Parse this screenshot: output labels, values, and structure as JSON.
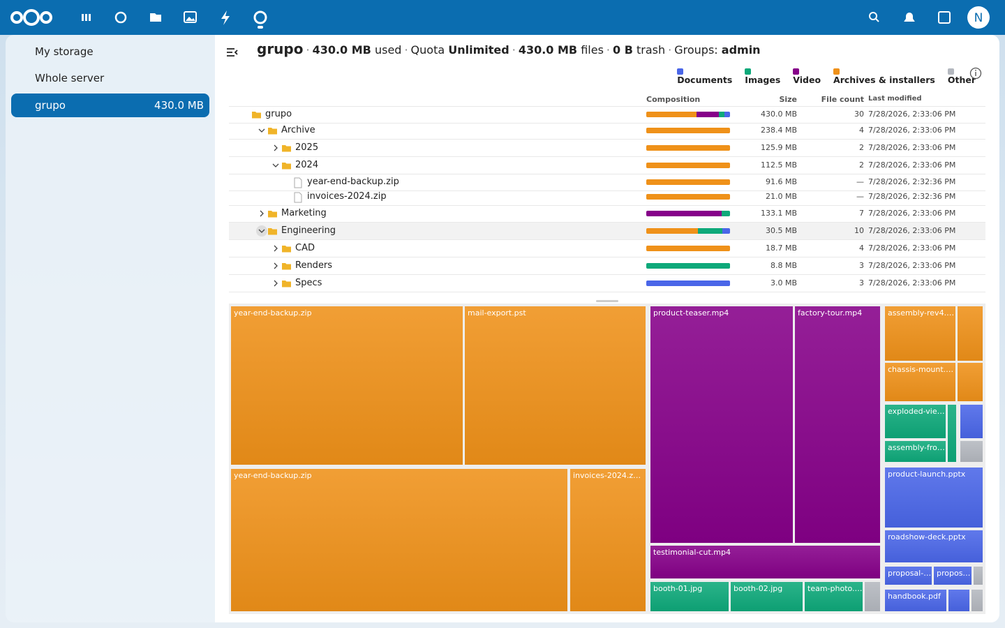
{
  "top_bar": {
    "avatar": "N"
  },
  "sidebar": {
    "items": [
      {
        "label": "My storage"
      },
      {
        "label": "Whole server"
      },
      {
        "label": "grupo",
        "size": "430.0 MB"
      }
    ]
  },
  "header": {
    "title": "grupo",
    "separator": "·",
    "used_value": "430.0 MB",
    "used_label": "used",
    "quota_label": "Quota",
    "quota_value": "Unlimited",
    "files_value": "430.0 MB",
    "files_label": "files",
    "trash_value": "0 B",
    "trash_label": "trash",
    "groups_label": "Groups:",
    "groups_value": "admin"
  },
  "legend": [
    {
      "name": "Documents",
      "color": "#4a66e8"
    },
    {
      "name": "Images",
      "color": "#0ea97a"
    },
    {
      "name": "Video",
      "color": "#860089"
    },
    {
      "name": "Archives & installers",
      "color": "#ef9119"
    },
    {
      "name": "Other",
      "color": "#b4b8bf"
    }
  ],
  "table": {
    "columns": [
      "Composition",
      "Size",
      "File count",
      "Last modified"
    ],
    "rows": [
      {
        "name": "grupo",
        "size": "430.0 MB",
        "count": 30,
        "modified": "7/28/2026, 2:33:06 PM",
        "composition": [
          7,
          6,
          27,
          60,
          0
        ]
      },
      {
        "name": "Archive",
        "size": "238.4 MB",
        "count": 4,
        "modified": "7/28/2026, 2:33:06 PM",
        "composition": [
          0,
          0,
          0,
          100,
          0
        ]
      },
      {
        "name": "2025",
        "size": "125.9 MB",
        "count": 2,
        "modified": "7/28/2026, 2:33:06 PM",
        "composition": [
          0,
          0,
          0,
          100,
          0
        ]
      },
      {
        "name": "2024",
        "size": "112.5 MB",
        "count": 2,
        "modified": "7/28/2026, 2:33:06 PM",
        "composition": [
          0,
          0,
          0,
          100,
          0
        ]
      },
      {
        "name": "year-end-backup.zip",
        "size": "91.6 MB",
        "count": "—",
        "modified": "7/28/2026, 2:32:36 PM",
        "composition": [
          0,
          0,
          0,
          100,
          0
        ]
      },
      {
        "name": "invoices-2024.zip",
        "size": "21.0 MB",
        "count": "—",
        "modified": "7/28/2026, 2:32:36 PM",
        "composition": [
          0,
          0,
          0,
          100,
          0
        ]
      },
      {
        "name": "Marketing",
        "size": "133.1 MB",
        "count": 7,
        "modified": "7/28/2026, 2:33:06 PM",
        "composition": [
          0,
          10,
          90,
          0,
          0
        ]
      },
      {
        "name": "Engineering",
        "size": "30.5 MB",
        "count": 10,
        "modified": "7/28/2026, 2:33:06 PM",
        "composition": [
          9,
          29,
          0,
          62,
          0
        ]
      },
      {
        "name": "CAD",
        "size": "18.7 MB",
        "count": 4,
        "modified": "7/28/2026, 2:33:06 PM",
        "composition": [
          0,
          0,
          0,
          100,
          0
        ]
      },
      {
        "name": "Renders",
        "size": "8.8 MB",
        "count": 3,
        "modified": "7/28/2026, 2:33:06 PM",
        "composition": [
          0,
          100,
          0,
          0,
          0
        ]
      },
      {
        "name": "Specs",
        "size": "3.0 MB",
        "count": 3,
        "modified": "7/28/2026, 2:33:06 PM",
        "composition": [
          100,
          0,
          0,
          0,
          0
        ]
      }
    ]
  },
  "treemap": {
    "labels": [
      "year-end-backup.zip",
      "mail-export.pst",
      "year-end-backup.zip",
      "invoices-2024.z…",
      "product-teaser.mp4",
      "factory-tour.mp4",
      "testimonial-cut.mp4",
      "booth-01.jpg",
      "booth-02.jpg",
      "team-photo.…",
      "assembly-rev4.…",
      "chassis-mount.…",
      "exploded-vie…",
      "assembly-fro…",
      "product-launch.pptx",
      "roadshow-deck.pptx",
      "proposal-…",
      "propos…",
      "handbook.pdf"
    ]
  }
}
